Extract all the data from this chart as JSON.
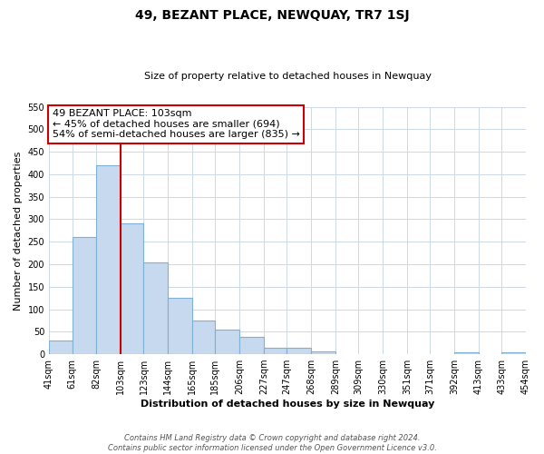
{
  "title": "49, BEZANT PLACE, NEWQUAY, TR7 1SJ",
  "subtitle": "Size of property relative to detached houses in Newquay",
  "xlabel": "Distribution of detached houses by size in Newquay",
  "ylabel": "Number of detached properties",
  "footer_line1": "Contains HM Land Registry data © Crown copyright and database right 2024.",
  "footer_line2": "Contains public sector information licensed under the Open Government Licence v3.0.",
  "bar_edges": [
    41,
    61,
    82,
    103,
    123,
    144,
    165,
    185,
    206,
    227,
    247,
    268,
    289,
    309,
    330,
    351,
    371,
    392,
    413,
    433,
    454
  ],
  "bar_heights": [
    30,
    260,
    420,
    290,
    205,
    125,
    75,
    55,
    38,
    15,
    15,
    7,
    0,
    0,
    0,
    0,
    0,
    5,
    0,
    5
  ],
  "bar_color": "#c6d9ee",
  "bar_edge_color": "#7fb0d5",
  "vline_x": 103,
  "vline_color": "#cc0000",
  "annotation_text": "49 BEZANT PLACE: 103sqm\n← 45% of detached houses are smaller (694)\n54% of semi-detached houses are larger (835) →",
  "annotation_box_edge_color": "#cc0000",
  "annotation_box_face_color": "#ffffff",
  "ylim": [
    0,
    550
  ],
  "yticks": [
    0,
    50,
    100,
    150,
    200,
    250,
    300,
    350,
    400,
    450,
    500,
    550
  ],
  "tick_labels": [
    "41sqm",
    "61sqm",
    "82sqm",
    "103sqm",
    "123sqm",
    "144sqm",
    "165sqm",
    "185sqm",
    "206sqm",
    "227sqm",
    "247sqm",
    "268sqm",
    "289sqm",
    "309sqm",
    "330sqm",
    "351sqm",
    "371sqm",
    "392sqm",
    "413sqm",
    "433sqm",
    "454sqm"
  ],
  "background_color": "#ffffff",
  "grid_color": "#cdd8e8"
}
